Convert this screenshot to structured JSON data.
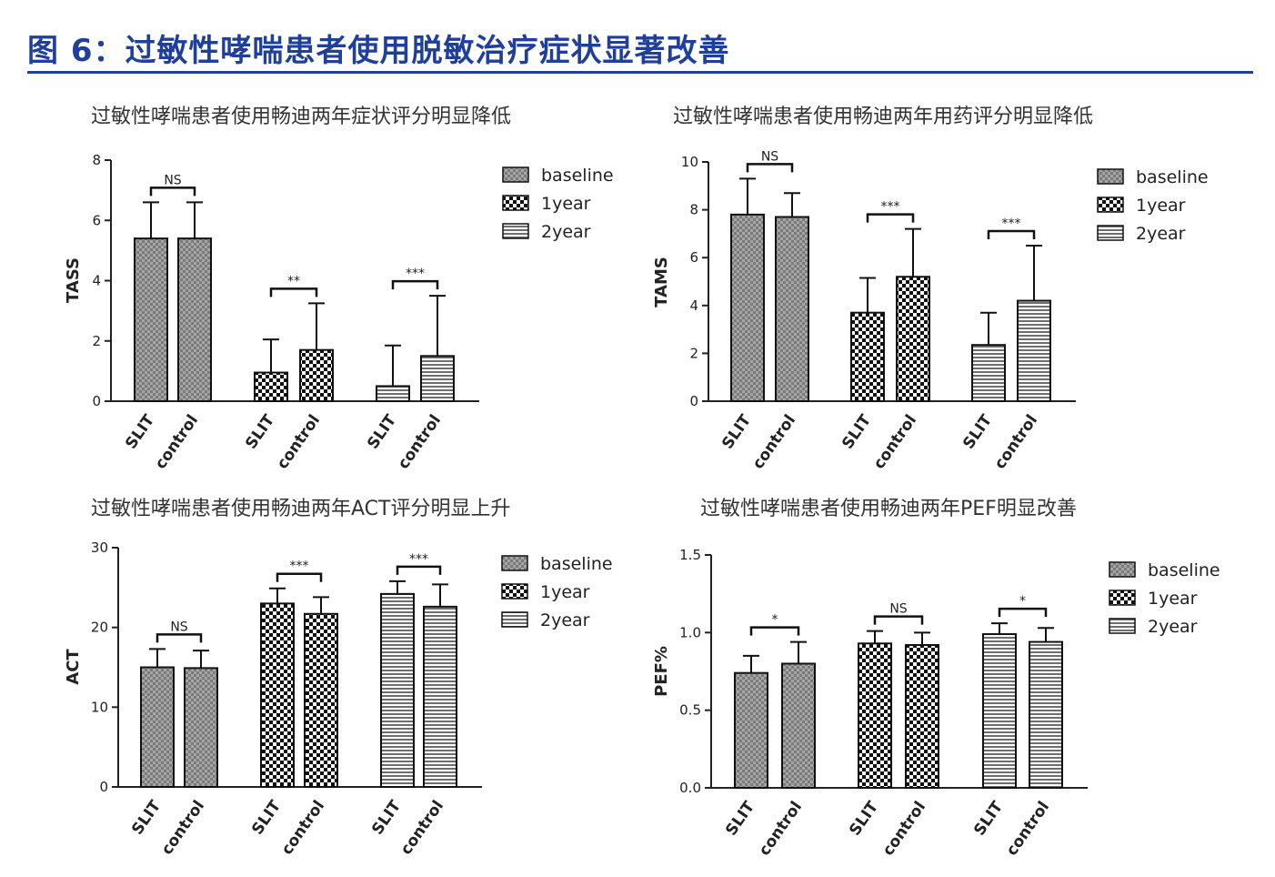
{
  "figure": {
    "title": "图 6：过敏性哮喘患者使用脱敏治疗症状显著改善",
    "accent_color": "#1f3f9c"
  },
  "chart_data": [
    {
      "type": "bar",
      "title": "过敏性哮喘患者使用畅迪两年症状评分明显降低",
      "ylabel": "TASS",
      "ylim": [
        0,
        8
      ],
      "yticks": [
        0,
        2,
        4,
        6,
        8
      ],
      "ytick_labels": [
        "0",
        "2",
        "4",
        "6",
        "8"
      ],
      "legend": [
        "baseline",
        "1year",
        "2year"
      ],
      "legend_position": "top-right",
      "groups": [
        {
          "period": "baseline",
          "bars": [
            {
              "label": "SLIT",
              "value": 5.4,
              "err": 1.2
            },
            {
              "label": "control",
              "value": 5.4,
              "err": 1.2
            }
          ],
          "sig": "NS"
        },
        {
          "period": "1year",
          "bars": [
            {
              "label": "SLIT",
              "value": 0.95,
              "err": 1.1
            },
            {
              "label": "control",
              "value": 1.7,
              "err": 1.55
            }
          ],
          "sig": "**"
        },
        {
          "period": "2year",
          "bars": [
            {
              "label": "SLIT",
              "value": 0.5,
              "err": 1.35
            },
            {
              "label": "control",
              "value": 1.5,
              "err": 2.0
            }
          ],
          "sig": "***"
        }
      ]
    },
    {
      "type": "bar",
      "title": "过敏性哮喘患者使用畅迪两年用药评分明显降低",
      "ylabel": "TAMS",
      "ylim": [
        0,
        10
      ],
      "yticks": [
        0,
        2,
        4,
        6,
        8,
        10
      ],
      "ytick_labels": [
        "0",
        "2",
        "4",
        "6",
        "8",
        "10"
      ],
      "legend": [
        "baseline",
        "1year",
        "2year"
      ],
      "legend_position": "top-right",
      "groups": [
        {
          "period": "baseline",
          "bars": [
            {
              "label": "SLIT",
              "value": 7.8,
              "err": 1.5
            },
            {
              "label": "control",
              "value": 7.7,
              "err": 1.0
            }
          ],
          "sig": "NS"
        },
        {
          "period": "1year",
          "bars": [
            {
              "label": "SLIT",
              "value": 3.7,
              "err": 1.45
            },
            {
              "label": "control",
              "value": 5.2,
              "err": 2.0
            }
          ],
          "sig": "***"
        },
        {
          "period": "2year",
          "bars": [
            {
              "label": "SLIT",
              "value": 2.35,
              "err": 1.35
            },
            {
              "label": "control",
              "value": 4.2,
              "err": 2.3
            }
          ],
          "sig": "***"
        }
      ]
    },
    {
      "type": "bar",
      "title": "过敏性哮喘患者使用畅迪两年ACT评分明显上升",
      "ylabel": "ACT",
      "ylim": [
        0,
        30
      ],
      "yticks": [
        0,
        10,
        20,
        30
      ],
      "ytick_labels": [
        "0",
        "10",
        "20",
        "30"
      ],
      "legend": [
        "baseline",
        "1year",
        "2year"
      ],
      "legend_position": "top-right",
      "groups": [
        {
          "period": "baseline",
          "bars": [
            {
              "label": "SLIT",
              "value": 15.0,
              "err": 2.3
            },
            {
              "label": "control",
              "value": 14.9,
              "err": 2.2
            }
          ],
          "sig": "NS"
        },
        {
          "period": "1year",
          "bars": [
            {
              "label": "SLIT",
              "value": 23.0,
              "err": 1.9
            },
            {
              "label": "control",
              "value": 21.7,
              "err": 2.1
            }
          ],
          "sig": "***"
        },
        {
          "period": "2year",
          "bars": [
            {
              "label": "SLIT",
              "value": 24.2,
              "err": 1.6
            },
            {
              "label": "control",
              "value": 22.6,
              "err": 2.8
            }
          ],
          "sig": "***"
        }
      ]
    },
    {
      "type": "bar",
      "title": "过敏性哮喘患者使用畅迪两年PEF明显改善",
      "ylabel": "PEF%",
      "ylim": [
        0,
        1.5
      ],
      "yticks": [
        0,
        0.5,
        1.0,
        1.5
      ],
      "ytick_labels": [
        "0.0",
        "0.5",
        "1.0",
        "1.5"
      ],
      "legend": [
        "baseline",
        "1year",
        "2year"
      ],
      "legend_position": "top-right",
      "groups": [
        {
          "period": "baseline",
          "bars": [
            {
              "label": "SLIT",
              "value": 0.74,
              "err": 0.11
            },
            {
              "label": "control",
              "value": 0.8,
              "err": 0.14
            }
          ],
          "sig": "*"
        },
        {
          "period": "1year",
          "bars": [
            {
              "label": "SLIT",
              "value": 0.93,
              "err": 0.08
            },
            {
              "label": "control",
              "value": 0.92,
              "err": 0.08
            }
          ],
          "sig": "NS"
        },
        {
          "period": "2year",
          "bars": [
            {
              "label": "SLIT",
              "value": 0.99,
              "err": 0.07
            },
            {
              "label": "control",
              "value": 0.94,
              "err": 0.09
            }
          ],
          "sig": "*"
        }
      ]
    }
  ]
}
